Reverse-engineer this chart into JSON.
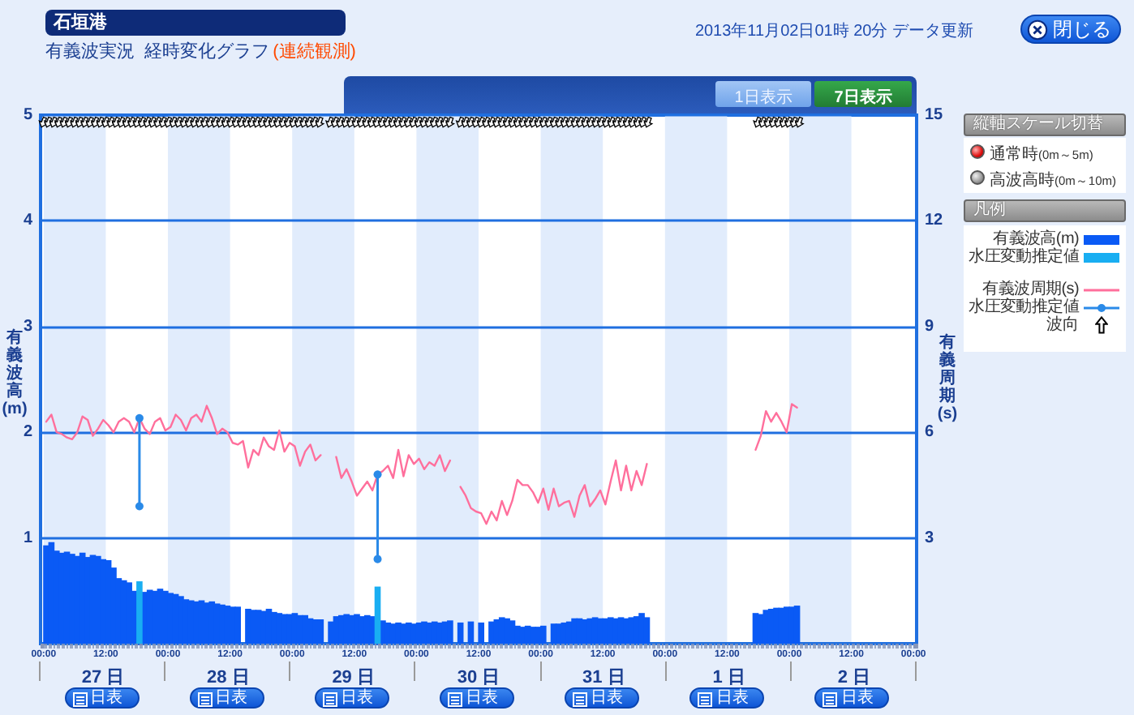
{
  "chart_data": {
    "type": "bar",
    "title": "石垣港",
    "subtitle": "有義波実況  経時変化グラフ",
    "ylabel": "有義波高(m)",
    "y2label": "有義周期(s)",
    "legend_title": "凡例",
    "annotations": [
      "(連続観測)",
      "2013年11月02日01時 20分 データ更新",
      "閉じる",
      "1日表示",
      "7日表示",
      "縦軸スケール切替",
      "通常時",
      "(0m～5m)",
      "高波高時",
      "(0m～10m)",
      "波向",
      "27 日",
      "28 日",
      "29 日",
      "30 日",
      "31 日",
      "1 日",
      "2 日",
      "日表",
      "日表",
      "日表",
      "日表",
      "日表",
      "日表",
      "日表"
    ],
    "x": [
      "2013-10-27T00:30",
      "2013-10-27T01:30",
      "2013-10-27T02:30",
      "2013-10-27T03:30",
      "2013-10-27T04:30",
      "2013-10-27T05:30",
      "2013-10-27T06:30",
      "2013-10-27T07:30",
      "2013-10-27T08:30",
      "2013-10-27T09:30",
      "2013-10-27T10:30",
      "2013-10-27T11:30",
      "2013-10-27T12:30",
      "2013-10-27T13:30",
      "2013-10-27T14:30",
      "2013-10-27T15:30",
      "2013-10-27T16:30",
      "2013-10-27T17:30",
      "2013-10-27T18:30",
      "2013-10-27T19:30",
      "2013-10-27T20:30",
      "2013-10-27T21:30",
      "2013-10-27T22:30",
      "2013-10-27T23:30",
      "2013-10-28T00:30",
      "2013-10-28T01:30",
      "2013-10-28T02:30",
      "2013-10-28T03:30",
      "2013-10-28T04:30",
      "2013-10-28T05:30",
      "2013-10-28T06:30",
      "2013-10-28T07:30",
      "2013-10-28T08:30",
      "2013-10-28T09:30",
      "2013-10-28T10:30",
      "2013-10-28T11:30",
      "2013-10-28T12:30",
      "2013-10-28T13:30",
      "2013-10-28T14:30",
      "2013-10-28T15:30",
      "2013-10-28T16:30",
      "2013-10-28T17:30",
      "2013-10-28T18:30",
      "2013-10-28T19:30",
      "2013-10-28T20:30",
      "2013-10-28T21:30",
      "2013-10-28T22:30",
      "2013-10-28T23:30",
      "2013-10-29T00:30",
      "2013-10-29T01:30",
      "2013-10-29T02:30",
      "2013-10-29T03:30",
      "2013-10-29T04:30",
      "2013-10-29T05:30",
      "2013-10-29T06:30",
      "2013-10-29T07:30",
      "2013-10-29T08:30",
      "2013-10-29T09:30",
      "2013-10-29T10:30",
      "2013-10-29T11:30",
      "2013-10-29T12:30",
      "2013-10-29T13:30",
      "2013-10-29T14:30",
      "2013-10-29T15:30",
      "2013-10-29T16:30",
      "2013-10-29T17:30",
      "2013-10-29T18:30",
      "2013-10-29T19:30",
      "2013-10-29T20:30",
      "2013-10-29T21:30",
      "2013-10-29T22:30",
      "2013-10-29T23:30",
      "2013-10-30T00:30",
      "2013-10-30T01:30",
      "2013-10-30T02:30",
      "2013-10-30T03:30",
      "2013-10-30T04:30",
      "2013-10-30T05:30",
      "2013-10-30T06:30",
      "2013-10-30T07:30",
      "2013-10-30T08:30",
      "2013-10-30T09:30",
      "2013-10-30T10:30",
      "2013-10-30T11:30",
      "2013-10-30T12:30",
      "2013-10-30T13:30",
      "2013-10-30T14:30",
      "2013-10-30T15:30",
      "2013-10-30T16:30",
      "2013-10-30T17:30",
      "2013-10-30T18:30",
      "2013-10-30T19:30",
      "2013-10-30T20:30",
      "2013-10-30T21:30",
      "2013-10-30T22:30",
      "2013-10-30T23:30",
      "2013-10-31T00:30",
      "2013-10-31T01:30",
      "2013-10-31T02:30",
      "2013-10-31T03:30",
      "2013-10-31T04:30",
      "2013-10-31T05:30",
      "2013-10-31T06:30",
      "2013-10-31T07:30",
      "2013-10-31T08:30",
      "2013-10-31T09:30",
      "2013-10-31T10:30",
      "2013-10-31T11:30",
      "2013-10-31T12:30",
      "2013-10-31T13:30",
      "2013-10-31T14:30",
      "2013-10-31T15:30",
      "2013-10-31T16:30",
      "2013-10-31T17:30",
      "2013-10-31T18:30",
      "2013-10-31T19:30",
      "2013-10-31T20:30",
      "2013-10-31T21:30",
      "2013-10-31T22:30",
      "2013-10-31T23:30",
      "2013-11-01T00:30",
      "2013-11-01T01:30",
      "2013-11-01T02:30",
      "2013-11-01T03:30",
      "2013-11-01T04:30",
      "2013-11-01T05:30",
      "2013-11-01T06:30",
      "2013-11-01T07:30",
      "2013-11-01T08:30",
      "2013-11-01T09:30",
      "2013-11-01T10:30",
      "2013-11-01T11:30",
      "2013-11-01T12:30",
      "2013-11-01T13:30",
      "2013-11-01T14:30",
      "2013-11-01T15:30",
      "2013-11-01T16:30",
      "2013-11-01T17:30",
      "2013-11-01T18:30",
      "2013-11-01T19:30",
      "2013-11-01T20:30",
      "2013-11-01T21:30",
      "2013-11-01T22:30",
      "2013-11-01T23:30",
      "2013-11-02T00:30",
      "2013-11-02T01:30"
    ],
    "series": [
      {
        "name": "有義波高(m)",
        "color": "#0a5af5",
        "values": [
          0.93,
          0.96,
          0.88,
          0.86,
          0.87,
          0.85,
          0.83,
          0.86,
          0.82,
          0.84,
          0.83,
          0.8,
          0.79,
          0.72,
          0.62,
          0.6,
          0.58,
          0.5,
          null,
          0.49,
          0.51,
          0.5,
          0.52,
          0.5,
          0.48,
          0.47,
          0.45,
          0.42,
          0.41,
          0.4,
          0.41,
          0.39,
          0.4,
          0.38,
          0.37,
          0.36,
          0.35,
          0.35,
          null,
          0.33,
          0.32,
          0.32,
          0.31,
          0.33,
          0.3,
          0.29,
          0.28,
          0.28,
          0.29,
          0.27,
          0.27,
          0.24,
          0.23,
          0.23,
          null,
          0.21,
          0.26,
          0.27,
          0.28,
          0.27,
          0.28,
          0.26,
          0.27,
          0.26,
          null,
          0.22,
          0.2,
          0.19,
          0.2,
          0.19,
          0.2,
          0.19,
          0.2,
          0.21,
          0.2,
          0.21,
          0.2,
          0.21,
          0.22,
          null,
          0.2,
          null,
          0.21,
          null,
          0.2,
          null,
          0.21,
          0.23,
          0.25,
          0.24,
          0.22,
          0.17,
          0.16,
          0.17,
          0.16,
          0.16,
          0.17,
          null,
          0.19,
          0.19,
          0.2,
          0.21,
          0.24,
          0.24,
          0.23,
          0.24,
          0.25,
          0.24,
          0.24,
          0.25,
          0.24,
          0.25,
          0.24,
          0.25,
          0.26,
          0.29,
          0.25,
          null,
          null,
          null,
          null,
          null,
          null,
          null,
          null,
          null,
          null,
          null,
          null,
          null,
          null,
          null,
          null,
          null,
          null,
          null,
          null,
          0.29,
          0.28,
          0.32,
          0.33,
          0.34,
          0.34,
          0.35,
          0.35,
          0.36
        ]
      },
      {
        "name": "水圧変動推定値",
        "color": "#19aef2",
        "x": [
          "2013-10-27T18:30",
          "2013-10-29T16:30"
        ],
        "values": [
          0.59,
          0.54
        ]
      },
      {
        "name": "有義波周期(s)",
        "type": "line",
        "axis": "y2",
        "color": "#ff6f9c",
        "values": [
          6.3,
          6.5,
          6.0,
          5.95,
          5.85,
          5.8,
          6.0,
          6.45,
          6.35,
          5.9,
          6.1,
          6.35,
          6.2,
          6.0,
          6.3,
          6.4,
          6.3,
          6.0,
          6.4,
          6.1,
          5.95,
          6.3,
          6.4,
          6.05,
          6.15,
          6.5,
          6.35,
          6.05,
          6.4,
          6.5,
          6.3,
          6.75,
          6.4,
          5.95,
          6.1,
          6.0,
          5.7,
          5.65,
          5.75,
          5.0,
          5.5,
          5.35,
          5.85,
          5.6,
          5.5,
          6.05,
          5.45,
          5.7,
          5.6,
          5.05,
          5.45,
          5.65,
          5.2,
          5.35,
          null,
          null,
          5.3,
          4.7,
          4.95,
          4.6,
          4.2,
          4.4,
          4.6,
          4.35,
          4.8,
          4.9,
          5.05,
          4.7,
          5.5,
          4.75,
          5.35,
          5.1,
          5.25,
          4.95,
          5.15,
          5.05,
          5.35,
          4.9,
          5.2,
          null,
          4.45,
          4.2,
          3.85,
          3.75,
          3.7,
          3.4,
          3.75,
          3.5,
          4.05,
          3.65,
          4.05,
          4.65,
          4.5,
          4.5,
          4.3,
          4.0,
          4.4,
          3.8,
          4.4,
          3.9,
          4.0,
          4.05,
          3.6,
          4.2,
          4.5,
          3.9,
          4.1,
          4.35,
          3.95,
          4.6,
          5.2,
          4.35,
          5.05,
          4.35,
          4.9,
          4.5,
          5.1,
          null,
          null,
          null,
          null,
          null,
          null,
          null,
          null,
          null,
          null,
          null,
          null,
          null,
          null,
          null,
          null,
          null,
          null,
          null,
          null,
          5.5,
          5.9,
          6.6,
          6.3,
          6.55,
          6.3,
          6.0,
          6.8,
          6.7
        ]
      },
      {
        "name": "水圧変動推定値",
        "type": "line",
        "axis": "y2",
        "color": "#2a8ae8",
        "marker": "circle",
        "x": [
          "2013-10-27T18:30",
          "2013-10-27T18:30",
          "2013-10-28T12:00",
          "2013-10-29T16:30",
          "2013-10-29T16:30"
        ],
        "values": [
          6.4,
          3.9,
          null,
          4.8,
          2.4
        ]
      }
    ],
    "xlim": [
      "2013-10-27T00:00",
      "2013-11-03T00:00"
    ],
    "xticks": [
      {
        "value": "2013-10-27T00:00",
        "label": "00:00"
      },
      {
        "value": "2013-10-27T12:00",
        "label": "12:00"
      },
      {
        "value": "2013-10-28T00:00",
        "label": "00:00"
      },
      {
        "value": "2013-10-28T12:00",
        "label": "12:00"
      },
      {
        "value": "2013-10-29T00:00",
        "label": "00:00"
      },
      {
        "value": "2013-10-29T12:00",
        "label": "12:00"
      },
      {
        "value": "2013-10-30T00:00",
        "label": "00:00"
      },
      {
        "value": "2013-10-30T12:00",
        "label": "12:00"
      },
      {
        "value": "2013-10-31T00:00",
        "label": "00:00"
      },
      {
        "value": "2013-10-31T12:00",
        "label": "12:00"
      },
      {
        "value": "2013-11-01T00:00",
        "label": "00:00"
      },
      {
        "value": "2013-11-01T12:00",
        "label": "12:00"
      },
      {
        "value": "2013-11-02T00:00",
        "label": "00:00"
      },
      {
        "value": "2013-11-02T12:00",
        "label": "12:00"
      },
      {
        "value": "2013-11-03T00:00",
        "label": "00:00"
      }
    ],
    "ylim": [
      0,
      5
    ],
    "yticks": [
      1,
      2,
      3,
      4,
      5
    ],
    "y2lim": [
      0,
      15
    ],
    "y2ticks": [
      3,
      6,
      9,
      12,
      15
    ],
    "bands": [
      {
        "axis": "x",
        "from": "2013-10-27T00:00",
        "to": "2013-10-27T12:00",
        "color": "#e1ecfc"
      },
      {
        "axis": "x",
        "from": "2013-10-28T00:00",
        "to": "2013-10-28T12:00",
        "color": "#e1ecfc"
      },
      {
        "axis": "x",
        "from": "2013-10-29T00:00",
        "to": "2013-10-29T12:00",
        "color": "#e1ecfc"
      },
      {
        "axis": "x",
        "from": "2013-10-30T00:00",
        "to": "2013-10-30T12:00",
        "color": "#e1ecfc"
      },
      {
        "axis": "x",
        "from": "2013-10-31T00:00",
        "to": "2013-10-31T12:00",
        "color": "#e1ecfc"
      },
      {
        "axis": "x",
        "from": "2013-11-01T00:00",
        "to": "2013-11-01T12:00",
        "color": "#e1ecfc"
      },
      {
        "axis": "x",
        "from": "2013-11-02T00:00",
        "to": "2013-11-02T12:00",
        "color": "#e1ecfc"
      }
    ],
    "grid": "y",
    "legend": "right"
  }
}
